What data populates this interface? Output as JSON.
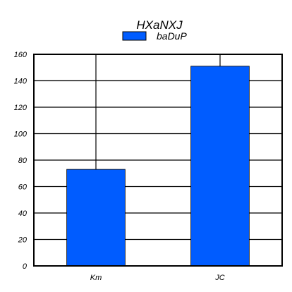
{
  "chart_data": {
    "type": "bar",
    "title": "HXaNXJ",
    "categories": [
      "Km",
      "JC"
    ],
    "series": [
      {
        "name": "baDuP",
        "values": [
          73,
          151
        ],
        "color": "#005cff"
      }
    ],
    "xlabel": "",
    "ylabel": "",
    "ylim": [
      0,
      160
    ],
    "yticks": [
      0,
      20,
      40,
      60,
      80,
      100,
      120,
      140,
      160
    ],
    "grid": true,
    "legend": "top-center"
  }
}
